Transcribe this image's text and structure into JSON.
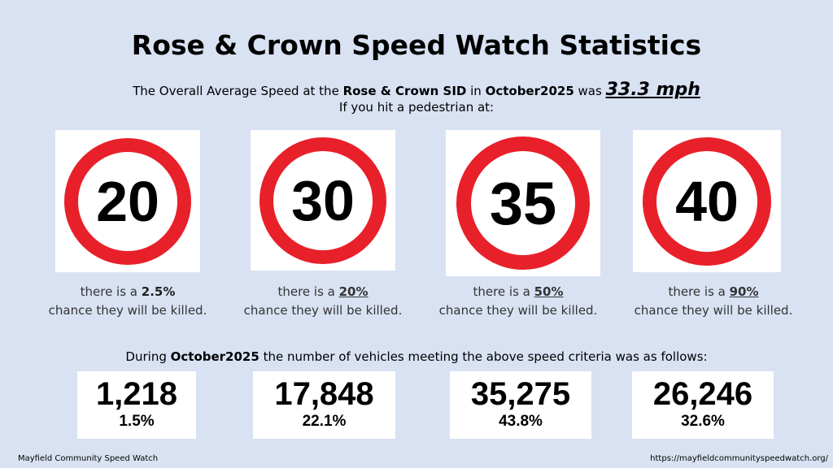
{
  "title": "Rose & Crown Speed Watch Statistics",
  "subtitle": {
    "pre": "The Overall Average Speed at the ",
    "site": "Rose & Crown SID",
    "mid": " in ",
    "month": "October2025",
    "post": " was ",
    "speed": "33.3 mph",
    "line2": "If you hit a pedestrian at:"
  },
  "signs": [
    {
      "limit": "20",
      "pre": "there is a ",
      "pct": "2.5%",
      "rest": "chance they will be killed."
    },
    {
      "limit": "30",
      "pre": "there is a ",
      "pct": "20%",
      "rest": "chance they will be killed."
    },
    {
      "limit": "35",
      "pre": "there is a ",
      "pct": "50%",
      "rest": "chance they will be killed."
    },
    {
      "limit": "40",
      "pre": "there is a ",
      "pct": "90%",
      "rest": "chance they will be killed."
    }
  ],
  "during": {
    "pre": "During ",
    "month": "October2025",
    "post": " the number of vehicles meeting the above speed criteria was as follows:"
  },
  "counts": [
    {
      "count": "1,218",
      "pct": "1.5%"
    },
    {
      "count": "17,848",
      "pct": "22.1%"
    },
    {
      "count": "35,275",
      "pct": "43.8%"
    },
    {
      "count": "26,246",
      "pct": "32.6%"
    }
  ],
  "footer": {
    "left": "Mayfield Community Speed Watch",
    "right": "https://mayfieldcommunityspeedwatch.org/"
  }
}
